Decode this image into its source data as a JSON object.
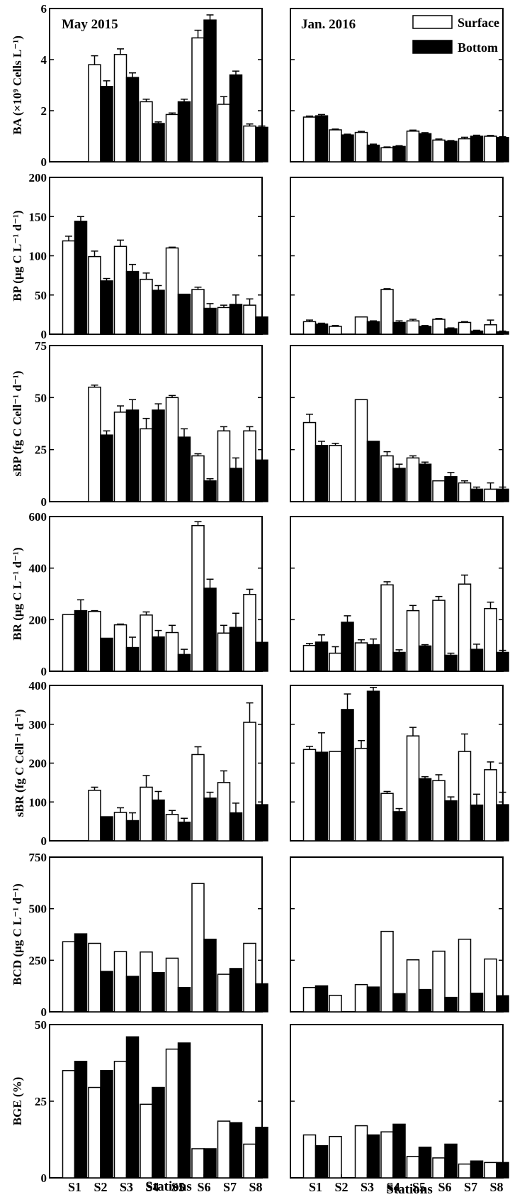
{
  "chart_data": {
    "type": "bar",
    "columns": [
      "May 2015",
      "Jan. 2016"
    ],
    "categories": [
      "S1",
      "S2",
      "S3",
      "S4",
      "S5",
      "S6",
      "S7",
      "S8"
    ],
    "xlabel": "Stations",
    "legend": {
      "position": "top-right",
      "entries": [
        "Surface",
        "Bottom"
      ]
    },
    "series_names": [
      "Surface",
      "Bottom"
    ],
    "panels": [
      {
        "id": "BA",
        "ylabel": "BA (×10⁹ Cells L⁻¹)",
        "ylim": [
          0,
          6
        ],
        "ticks": [
          "0",
          "2",
          "4",
          "6"
        ],
        "May 2015": {
          "Surface": [
            null,
            3.8,
            4.2,
            2.35,
            1.85,
            4.85,
            2.25,
            1.4
          ],
          "Bottom": [
            null,
            2.95,
            3.3,
            1.5,
            2.35,
            5.55,
            3.4,
            1.35
          ],
          "Surface_err": [
            null,
            0.35,
            0.22,
            0.1,
            0.06,
            0.3,
            0.3,
            0.08
          ],
          "Bottom_err": [
            null,
            0.22,
            0.18,
            0.06,
            0.1,
            0.2,
            0.15,
            0.05
          ]
        },
        "Jan. 2016": {
          "Surface": [
            1.75,
            1.25,
            1.15,
            0.55,
            1.2,
            0.85,
            0.9,
            1.0
          ],
          "Bottom": [
            1.8,
            1.05,
            0.65,
            0.6,
            1.1,
            0.8,
            1.0,
            0.95
          ],
          "Surface_err": [
            0.04,
            0.03,
            0.04,
            0.03,
            0.04,
            0.04,
            0.06,
            0.03
          ],
          "Bottom_err": [
            0.05,
            0.03,
            0.04,
            0.03,
            0.04,
            0.03,
            0.04,
            0.03
          ]
        }
      },
      {
        "id": "BP",
        "ylabel": "BP (μg C L⁻¹ d⁻¹)",
        "ylim": [
          0,
          200
        ],
        "ticks": [
          "0",
          "50",
          "100",
          "150",
          "200"
        ],
        "May 2015": {
          "Surface": [
            119,
            99,
            112,
            70,
            110,
            57,
            34,
            37
          ],
          "Bottom": [
            144,
            68,
            80,
            56,
            51,
            33,
            38,
            22
          ],
          "Surface_err": [
            6,
            7,
            8,
            8,
            1,
            3,
            3,
            8
          ],
          "Bottom_err": [
            6,
            3,
            9,
            6,
            0,
            6,
            12,
            0
          ]
        },
        "Jan. 2016": {
          "Surface": [
            16,
            10,
            22,
            57,
            17,
            19,
            15,
            12
          ],
          "Bottom": [
            13,
            null,
            16,
            15,
            10,
            7,
            4,
            3
          ],
          "Surface_err": [
            2,
            1,
            0,
            1,
            2,
            1,
            1,
            6
          ],
          "Bottom_err": [
            1,
            null,
            1,
            2,
            1,
            1,
            1,
            1
          ]
        }
      },
      {
        "id": "sBP",
        "ylabel": "sBP (fg C Cell⁻¹ d⁻¹)",
        "ylim": [
          0,
          75
        ],
        "ticks": [
          "0",
          "25",
          "50",
          "75"
        ],
        "May 2015": {
          "Surface": [
            null,
            55,
            43,
            35,
            50,
            22,
            34,
            34
          ],
          "Bottom": [
            null,
            32,
            44,
            44,
            31,
            10,
            16,
            20
          ],
          "Surface_err": [
            null,
            1,
            3,
            5,
            1,
            1,
            2,
            2
          ],
          "Bottom_err": [
            null,
            2,
            5,
            3,
            4,
            1,
            5,
            0
          ]
        },
        "Jan. 2016": {
          "Surface": [
            38,
            27,
            49,
            22,
            21,
            10,
            9,
            6
          ],
          "Bottom": [
            27,
            null,
            29,
            16,
            18,
            12,
            6,
            6
          ],
          "Surface_err": [
            4,
            1,
            0,
            2,
            1,
            0,
            1,
            3
          ],
          "Bottom_err": [
            2,
            null,
            0,
            2,
            1,
            2,
            1,
            1
          ]
        }
      },
      {
        "id": "BR",
        "ylabel": "BR (μg C L⁻¹ d⁻¹)",
        "ylim": [
          0,
          600
        ],
        "ticks": [
          "0",
          "200",
          "400",
          "600"
        ],
        "May 2015": {
          "Surface": [
            220,
            232,
            180,
            218,
            150,
            565,
            148,
            298
          ],
          "Bottom": [
            235,
            128,
            92,
            133,
            65,
            322,
            170,
            112
          ],
          "Surface_err": [
            0,
            3,
            3,
            12,
            28,
            15,
            30,
            20
          ],
          "Bottom_err": [
            42,
            0,
            40,
            25,
            20,
            35,
            55,
            0
          ]
        },
        "Jan. 2016": {
          "Surface": [
            100,
            70,
            110,
            335,
            235,
            275,
            338,
            243
          ],
          "Bottom": [
            113,
            190,
            103,
            73,
            98,
            62,
            85,
            73
          ],
          "Surface_err": [
            8,
            25,
            12,
            12,
            20,
            15,
            35,
            25
          ],
          "Bottom_err": [
            28,
            25,
            22,
            10,
            5,
            8,
            20,
            8
          ]
        }
      },
      {
        "id": "sBR",
        "ylabel": "sBR (fg C Cell⁻¹ d⁻¹)",
        "ylim": [
          0,
          400
        ],
        "ticks": [
          "0",
          "100",
          "200",
          "300",
          "400"
        ],
        "May 2015": {
          "Surface": [
            null,
            130,
            73,
            138,
            68,
            222,
            150,
            305
          ],
          "Bottom": [
            null,
            62,
            52,
            105,
            48,
            110,
            72,
            93
          ],
          "Surface_err": [
            null,
            8,
            12,
            30,
            10,
            20,
            30,
            50
          ],
          "Bottom_err": [
            null,
            0,
            20,
            22,
            10,
            15,
            25,
            0
          ]
        },
        "Jan. 2016": {
          "Surface": [
            235,
            230,
            238,
            122,
            270,
            155,
            230,
            183
          ],
          "Bottom": [
            228,
            338,
            385,
            75,
            160,
            103,
            92,
            93
          ],
          "Surface_err": [
            8,
            0,
            20,
            5,
            22,
            15,
            45,
            20
          ],
          "Bottom_err": [
            50,
            40,
            10,
            8,
            5,
            10,
            28,
            32
          ]
        }
      },
      {
        "id": "BCD",
        "ylabel": "BCD (μg C L⁻¹ d⁻¹)",
        "ylim": [
          0,
          750
        ],
        "ticks": [
          "0",
          "250",
          "500",
          "750"
        ],
        "May 2015": {
          "Surface": [
            340,
            332,
            292,
            290,
            260,
            622,
            182,
            332
          ],
          "Bottom": [
            378,
            196,
            172,
            190,
            118,
            352,
            210,
            136
          ],
          "Surface_err": [],
          "Bottom_err": []
        },
        "Jan. 2016": {
          "Surface": [
            118,
            80,
            132,
            390,
            252,
            294,
            352,
            256
          ],
          "Bottom": [
            126,
            null,
            120,
            88,
            108,
            70,
            90,
            78
          ],
          "Surface_err": [],
          "Bottom_err": []
        }
      },
      {
        "id": "BGE",
        "ylabel": "BGE (%)",
        "ylim": [
          0,
          50
        ],
        "ticks": [
          "0",
          "25",
          "50"
        ],
        "May 2015": {
          "Surface": [
            35,
            29.5,
            38,
            24,
            42,
            9.5,
            18.5,
            11
          ],
          "Bottom": [
            38,
            35,
            46,
            29.5,
            44,
            9.5,
            18,
            16.5
          ],
          "Surface_err": [],
          "Bottom_err": []
        },
        "Jan. 2016": {
          "Surface": [
            14,
            13.5,
            17,
            15,
            7,
            6.5,
            4.5,
            5
          ],
          "Bottom": [
            10.5,
            null,
            14,
            17.5,
            10,
            11,
            5.5,
            5
          ],
          "Surface_err": [],
          "Bottom_err": []
        }
      }
    ]
  }
}
